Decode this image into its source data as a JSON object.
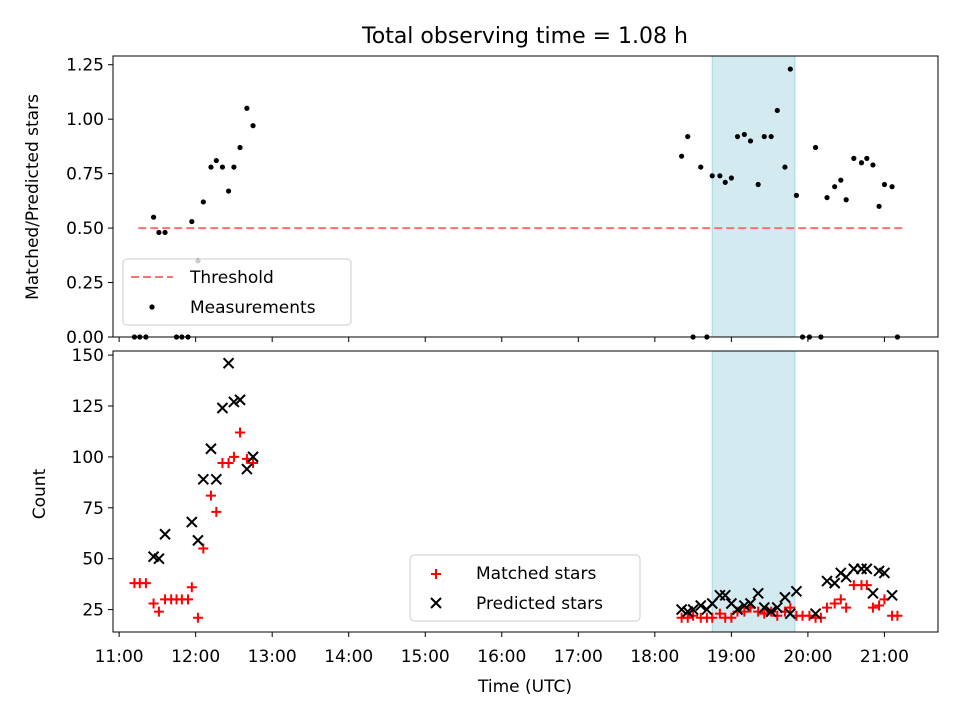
{
  "chart_data": [
    {
      "type": "scatter",
      "title": "Total observing time = 1.08 h",
      "ylabel": "Matched/Predicted stars",
      "xlabel": "",
      "x_unit": "hours (UTC)",
      "xlim": [
        10.92,
        21.7
      ],
      "ylim": [
        0,
        1.29
      ],
      "yticks": [
        "0.00",
        "0.25",
        "0.50",
        "0.75",
        "1.00",
        "1.25"
      ],
      "shaded_interval": {
        "start": 18.75,
        "end": 19.83,
        "color": "#a6d6e2"
      },
      "threshold": {
        "name": "Threshold",
        "y": 0.5,
        "x_start": 11.25,
        "x_end": 21.25,
        "color": "#ff7070"
      },
      "legend": {
        "placement": "lower-left",
        "entries": [
          "Threshold",
          "Measurements"
        ]
      },
      "series": [
        {
          "name": "Measurements",
          "color": "#000000",
          "points": [
            [
              11.2,
              0
            ],
            [
              11.27,
              0
            ],
            [
              11.35,
              0
            ],
            [
              11.45,
              0.55
            ],
            [
              11.52,
              0.48
            ],
            [
              11.6,
              0.48
            ],
            [
              11.75,
              0
            ],
            [
              11.82,
              0
            ],
            [
              11.9,
              0
            ],
            [
              11.95,
              0.53
            ],
            [
              12.03,
              0.35
            ],
            [
              12.1,
              0.62
            ],
            [
              12.2,
              0.78
            ],
            [
              12.27,
              0.81
            ],
            [
              12.35,
              0.78
            ],
            [
              12.43,
              0.67
            ],
            [
              12.5,
              0.78
            ],
            [
              12.58,
              0.87
            ],
            [
              12.67,
              1.05
            ],
            [
              12.75,
              0.97
            ],
            [
              18.35,
              0.83
            ],
            [
              18.43,
              0.92
            ],
            [
              18.5,
              0
            ],
            [
              18.6,
              0.78
            ],
            [
              18.68,
              0
            ],
            [
              18.75,
              0.74
            ],
            [
              18.85,
              0.74
            ],
            [
              18.92,
              0.71
            ],
            [
              19.0,
              0.73
            ],
            [
              19.08,
              0.92
            ],
            [
              19.17,
              0.93
            ],
            [
              19.25,
              0.9
            ],
            [
              19.35,
              0.7
            ],
            [
              19.43,
              0.92
            ],
            [
              19.52,
              0.92
            ],
            [
              19.6,
              1.04
            ],
            [
              19.7,
              0.78
            ],
            [
              19.77,
              1.23
            ],
            [
              19.85,
              0.65
            ],
            [
              19.93,
              0
            ],
            [
              20.02,
              0
            ],
            [
              20.1,
              0.87
            ],
            [
              20.17,
              0
            ],
            [
              20.25,
              0.64
            ],
            [
              20.35,
              0.69
            ],
            [
              20.43,
              0.72
            ],
            [
              20.5,
              0.63
            ],
            [
              20.6,
              0.82
            ],
            [
              20.7,
              0.8
            ],
            [
              20.77,
              0.82
            ],
            [
              20.85,
              0.79
            ],
            [
              20.93,
              0.6
            ],
            [
              21.0,
              0.7
            ],
            [
              21.1,
              0.69
            ],
            [
              21.17,
              0
            ]
          ]
        }
      ]
    },
    {
      "type": "scatter",
      "title": "",
      "ylabel": "Count",
      "xlabel": "Time (UTC)",
      "x_unit": "hours (UTC)",
      "xlim": [
        10.92,
        21.7
      ],
      "ylim": [
        14,
        152
      ],
      "yticks": [
        "25",
        "50",
        "75",
        "100",
        "125",
        "150"
      ],
      "xticks": [
        "11:00",
        "12:00",
        "13:00",
        "14:00",
        "15:00",
        "16:00",
        "17:00",
        "18:00",
        "19:00",
        "20:00",
        "21:00"
      ],
      "shaded_interval": {
        "start": 18.75,
        "end": 19.83,
        "color": "#a6d6e2"
      },
      "legend": {
        "placement": "lower-center",
        "entries": [
          "Matched stars",
          "Predicted stars"
        ]
      },
      "series": [
        {
          "name": "Matched stars",
          "marker": "plus",
          "color": "#ff0000",
          "points": [
            [
              11.2,
              38
            ],
            [
              11.27,
              38
            ],
            [
              11.35,
              38
            ],
            [
              11.45,
              28
            ],
            [
              11.52,
              24
            ],
            [
              11.6,
              30
            ],
            [
              11.68,
              30
            ],
            [
              11.75,
              30
            ],
            [
              11.82,
              30
            ],
            [
              11.9,
              30
            ],
            [
              11.95,
              36
            ],
            [
              12.03,
              21
            ],
            [
              12.1,
              55
            ],
            [
              12.2,
              81
            ],
            [
              12.27,
              73
            ],
            [
              12.35,
              97
            ],
            [
              12.43,
              97
            ],
            [
              12.5,
              100
            ],
            [
              12.58,
              112
            ],
            [
              12.67,
              99
            ],
            [
              12.75,
              97
            ],
            [
              18.35,
              21
            ],
            [
              18.43,
              21
            ],
            [
              18.5,
              22
            ],
            [
              18.6,
              21
            ],
            [
              18.68,
              21
            ],
            [
              18.75,
              21
            ],
            [
              18.85,
              23
            ],
            [
              18.92,
              21
            ],
            [
              19.0,
              21
            ],
            [
              19.08,
              24
            ],
            [
              19.17,
              24
            ],
            [
              19.25,
              26
            ],
            [
              19.35,
              24
            ],
            [
              19.43,
              23
            ],
            [
              19.52,
              24
            ],
            [
              19.6,
              22
            ],
            [
              19.7,
              24
            ],
            [
              19.77,
              26
            ],
            [
              19.85,
              22
            ],
            [
              19.93,
              22
            ],
            [
              20.02,
              22
            ],
            [
              20.1,
              21
            ],
            [
              20.17,
              21
            ],
            [
              20.25,
              26
            ],
            [
              20.35,
              28
            ],
            [
              20.43,
              30
            ],
            [
              20.5,
              26
            ],
            [
              20.6,
              37
            ],
            [
              20.7,
              37
            ],
            [
              20.77,
              37
            ],
            [
              20.85,
              26
            ],
            [
              20.93,
              27
            ],
            [
              21.0,
              30
            ],
            [
              21.1,
              22
            ],
            [
              21.17,
              22
            ]
          ]
        },
        {
          "name": "Predicted stars",
          "marker": "x",
          "color": "#000000",
          "points": [
            [
              11.45,
              51
            ],
            [
              11.52,
              50
            ],
            [
              11.6,
              62
            ],
            [
              11.95,
              68
            ],
            [
              12.03,
              59
            ],
            [
              12.1,
              89
            ],
            [
              12.2,
              104
            ],
            [
              12.27,
              89
            ],
            [
              12.35,
              124
            ],
            [
              12.43,
              146
            ],
            [
              12.5,
              127
            ],
            [
              12.58,
              128
            ],
            [
              12.67,
              94
            ],
            [
              12.75,
              100
            ],
            [
              18.35,
              25
            ],
            [
              18.43,
              24
            ],
            [
              18.5,
              25
            ],
            [
              18.6,
              27
            ],
            [
              18.68,
              25
            ],
            [
              18.75,
              28
            ],
            [
              18.85,
              32
            ],
            [
              18.92,
              32
            ],
            [
              19.0,
              28
            ],
            [
              19.08,
              25
            ],
            [
              19.17,
              27
            ],
            [
              19.25,
              28
            ],
            [
              19.35,
              33
            ],
            [
              19.43,
              26
            ],
            [
              19.52,
              24
            ],
            [
              19.6,
              26
            ],
            [
              19.7,
              31
            ],
            [
              19.77,
              23
            ],
            [
              19.85,
              34
            ],
            [
              20.1,
              23
            ],
            [
              20.25,
              39
            ],
            [
              20.35,
              38
            ],
            [
              20.43,
              43
            ],
            [
              20.5,
              41
            ],
            [
              20.6,
              45
            ],
            [
              20.7,
              45
            ],
            [
              20.77,
              45
            ],
            [
              20.85,
              33
            ],
            [
              20.93,
              44
            ],
            [
              21.0,
              43
            ],
            [
              21.1,
              32
            ]
          ]
        }
      ]
    }
  ]
}
